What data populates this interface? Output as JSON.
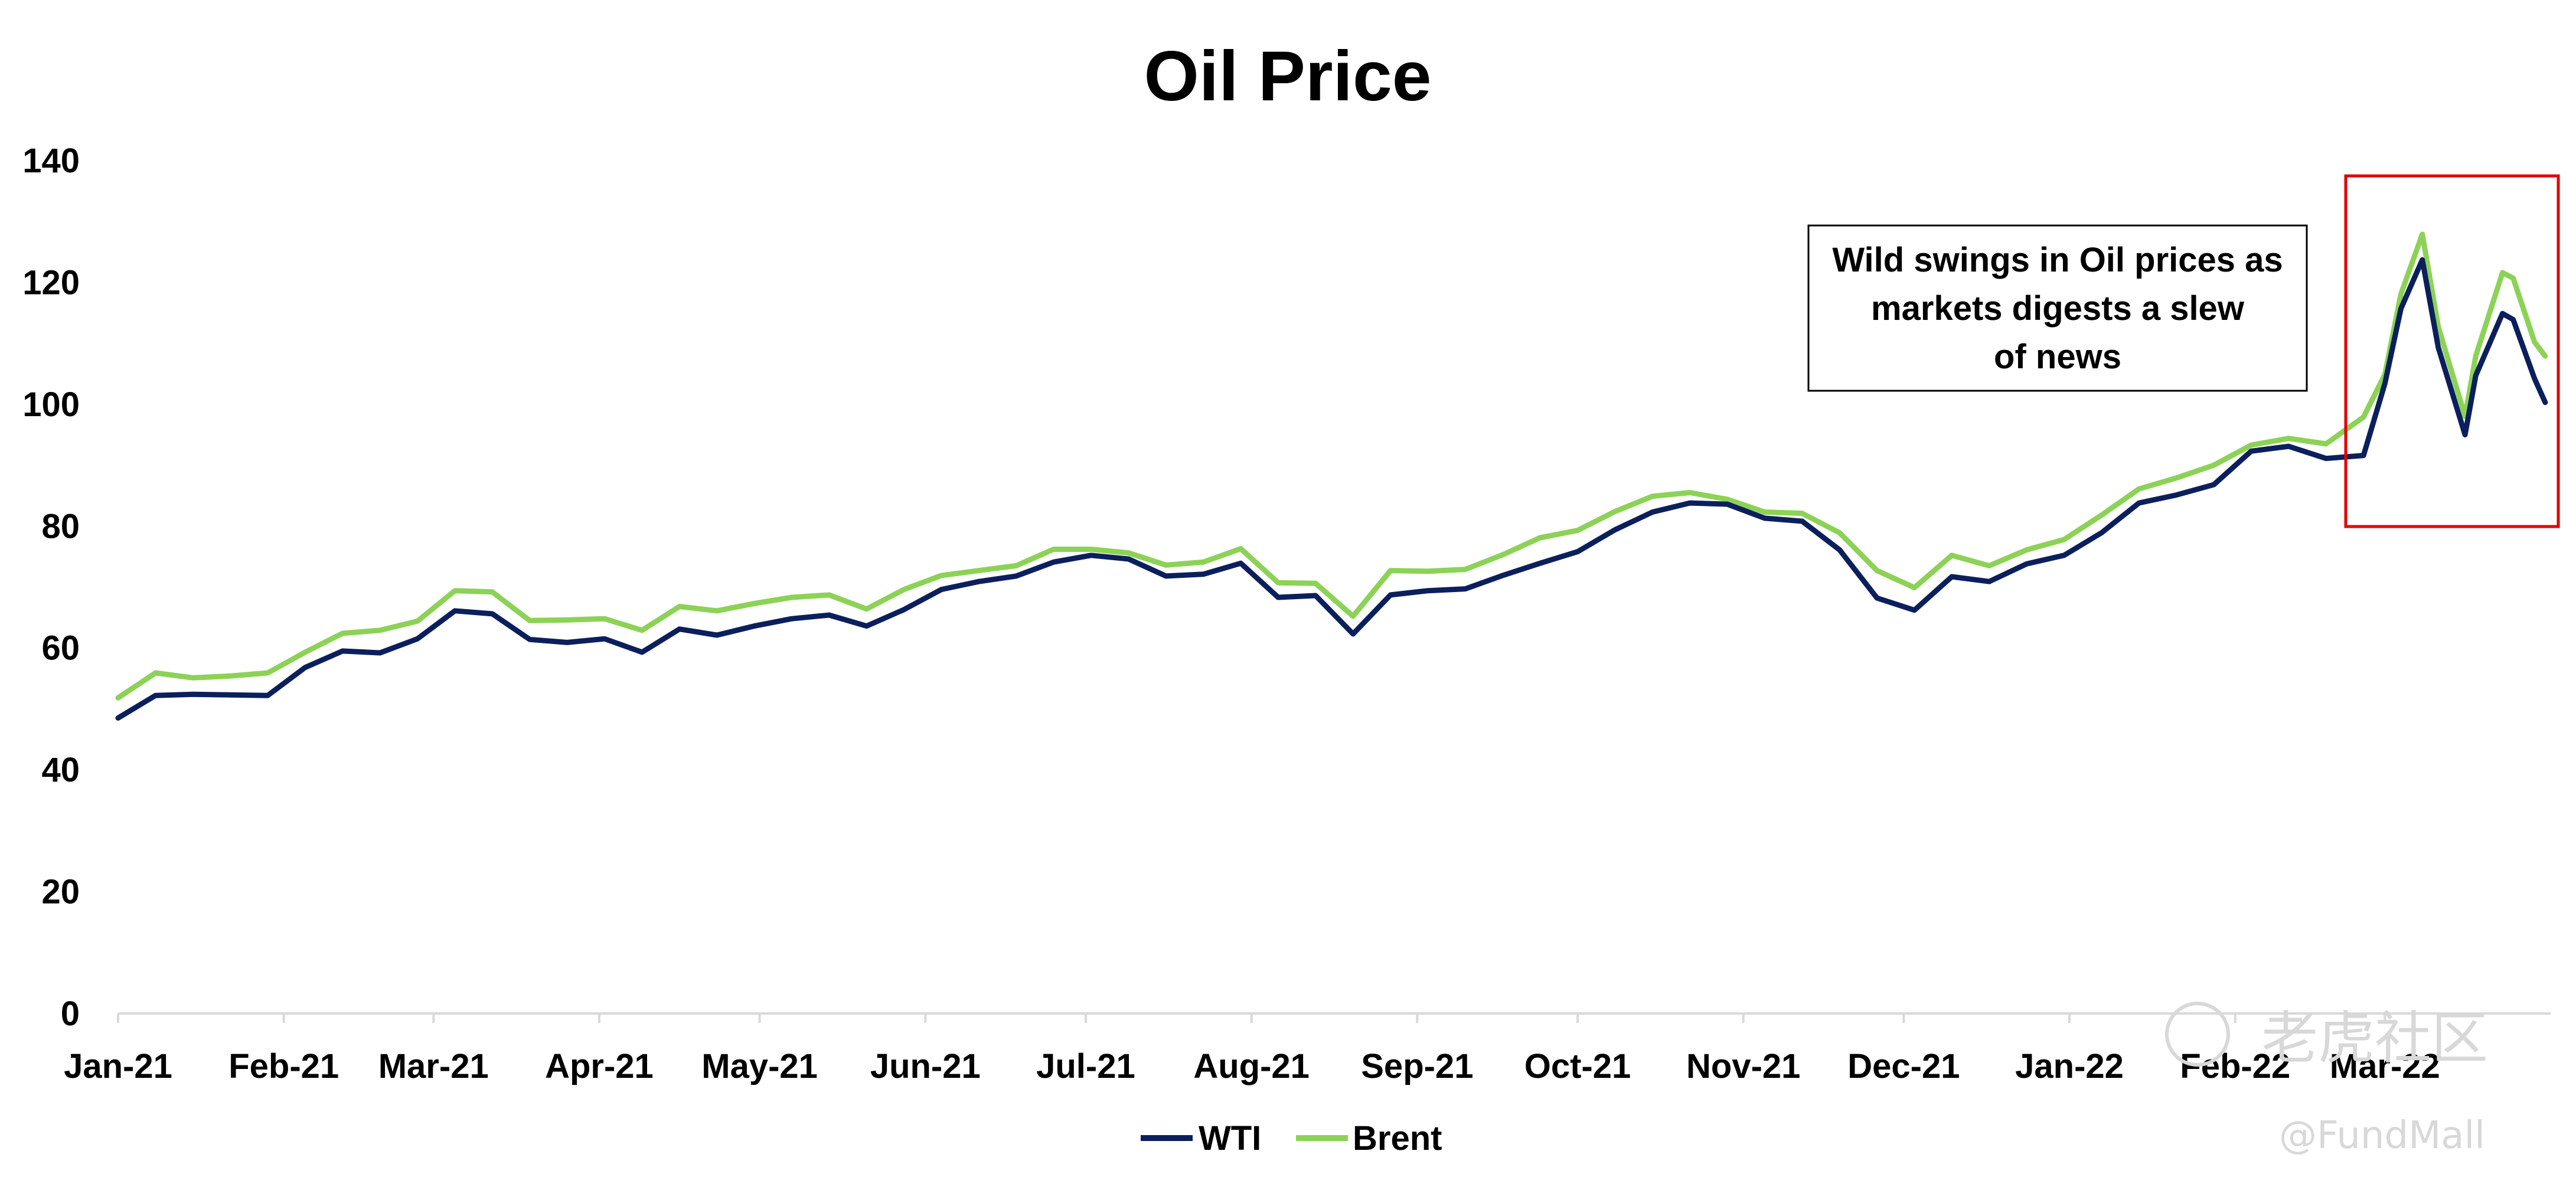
{
  "chart_data": {
    "type": "line",
    "title": "Oil Price",
    "xlabel": "",
    "ylabel": "",
    "ylim": [
      0,
      140
    ],
    "yticks": [
      0,
      20,
      40,
      60,
      80,
      100,
      120,
      140
    ],
    "xticks": [
      "Jan-21",
      "Feb-21",
      "Mar-21",
      "Apr-21",
      "May-21",
      "Jun-21",
      "Jul-21",
      "Aug-21",
      "Sep-21",
      "Oct-21",
      "Nov-21",
      "Dec-21",
      "Jan-22",
      "Feb-22",
      "Mar-22"
    ],
    "grid": false,
    "legend": "bottom",
    "colors": {
      "WTI": "#0b1f5c",
      "Brent": "#8cd256",
      "highlight": "#e00000"
    },
    "x": [
      "2021-01-01",
      "2021-01-08",
      "2021-01-15",
      "2021-01-22",
      "2021-01-29",
      "2021-02-05",
      "2021-02-12",
      "2021-02-19",
      "2021-02-26",
      "2021-03-05",
      "2021-03-12",
      "2021-03-19",
      "2021-03-26",
      "2021-04-02",
      "2021-04-09",
      "2021-04-16",
      "2021-04-23",
      "2021-04-30",
      "2021-05-07",
      "2021-05-14",
      "2021-05-21",
      "2021-05-28",
      "2021-06-04",
      "2021-06-11",
      "2021-06-18",
      "2021-06-25",
      "2021-07-02",
      "2021-07-09",
      "2021-07-16",
      "2021-07-23",
      "2021-07-30",
      "2021-08-06",
      "2021-08-13",
      "2021-08-20",
      "2021-08-27",
      "2021-09-03",
      "2021-09-10",
      "2021-09-17",
      "2021-09-24",
      "2021-10-01",
      "2021-10-08",
      "2021-10-15",
      "2021-10-22",
      "2021-10-29",
      "2021-11-05",
      "2021-11-12",
      "2021-11-19",
      "2021-11-26",
      "2021-12-03",
      "2021-12-10",
      "2021-12-17",
      "2021-12-24",
      "2021-12-31",
      "2022-01-07",
      "2022-01-14",
      "2022-01-21",
      "2022-01-28",
      "2022-02-04",
      "2022-02-11",
      "2022-02-18",
      "2022-02-25",
      "2022-03-01",
      "2022-03-04",
      "2022-03-08",
      "2022-03-11",
      "2022-03-16",
      "2022-03-18",
      "2022-03-23",
      "2022-03-25",
      "2022-03-29",
      "2022-03-31"
    ],
    "series": [
      {
        "name": "WTI",
        "values": [
          48.5,
          52.2,
          52.4,
          52.3,
          52.2,
          56.8,
          59.5,
          59.2,
          61.5,
          66.1,
          65.6,
          61.4,
          60.9,
          61.5,
          59.3,
          63.1,
          62.1,
          63.6,
          64.8,
          65.4,
          63.6,
          66.3,
          69.6,
          70.9,
          71.8,
          74.1,
          75.2,
          74.6,
          71.8,
          72.1,
          73.9,
          68.3,
          68.6,
          62.3,
          68.7,
          69.4,
          69.7,
          71.9,
          73.9,
          75.8,
          79.4,
          82.3,
          83.8,
          83.6,
          81.3,
          80.8,
          76.1,
          68.2,
          66.2,
          71.7,
          70.9,
          73.8,
          75.2,
          78.9,
          83.8,
          85.1,
          86.8,
          92.3,
          93.1,
          91.1,
          91.6,
          103.4,
          115.7,
          123.7,
          109.3,
          95.0,
          104.7,
          114.9,
          113.9,
          104.2,
          100.3
        ]
      },
      {
        "name": "Brent",
        "values": [
          51.8,
          55.9,
          55.1,
          55.4,
          55.9,
          59.3,
          62.4,
          62.9,
          64.4,
          69.4,
          69.2,
          64.5,
          64.6,
          64.8,
          62.9,
          66.8,
          66.1,
          67.3,
          68.3,
          68.7,
          66.4,
          69.6,
          71.9,
          72.7,
          73.5,
          76.2,
          76.2,
          75.6,
          73.6,
          74.1,
          76.3,
          70.7,
          70.6,
          65.2,
          72.7,
          72.6,
          72.9,
          75.3,
          78.1,
          79.3,
          82.4,
          84.9,
          85.5,
          84.4,
          82.3,
          82.1,
          78.9,
          72.7,
          69.9,
          75.2,
          73.5,
          76.1,
          77.8,
          81.8,
          86.1,
          87.9,
          90.0,
          93.3,
          94.4,
          93.5,
          97.9,
          104.9,
          118.1,
          127.9,
          112.7,
          98.0,
          107.9,
          121.6,
          120.7,
          110.2,
          107.9
        ]
      }
    ],
    "annotation": "Wild swings in Oil prices as markets digests a slew of news"
  },
  "watermark": {
    "brand": "老虎社区",
    "handle": "@FundMall"
  }
}
